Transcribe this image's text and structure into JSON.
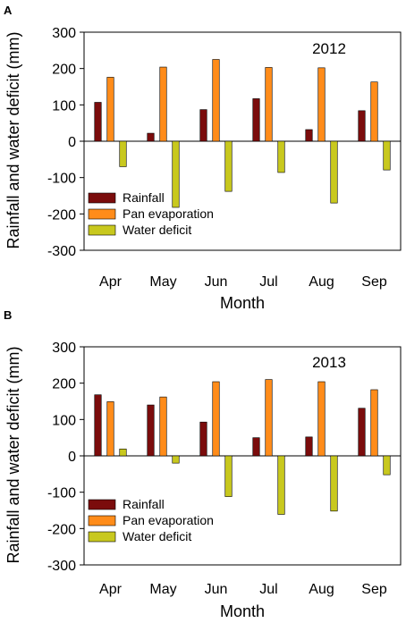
{
  "figure": {
    "panels": [
      {
        "panel_label": "A",
        "annotation": "2012",
        "legend_placement": "bottom-left",
        "legend_labels": [
          "Rainfall",
          "Pan evaporation",
          "Water deficit"
        ],
        "tick_labels_y": [
          "300",
          "200",
          "100",
          "0",
          "-100",
          "-200",
          "-300"
        ],
        "tick_labels_x": [
          "Apr",
          "May",
          "Jun",
          "Jul",
          "Aug",
          "Sep"
        ],
        "xlabel": "Month",
        "ylabel": "Rainfall and water deficit (mm)"
      },
      {
        "panel_label": "B",
        "annotation": "2013",
        "legend_placement": "bottom-left",
        "legend_labels": [
          "Rainfall",
          "Pan evaporation",
          "Water deficit"
        ],
        "tick_labels_y": [
          "300",
          "200",
          "100",
          "0",
          "-100",
          "-200",
          "-300"
        ],
        "tick_labels_x": [
          "Apr",
          "May",
          "Jun",
          "Jul",
          "Aug",
          "Sep"
        ],
        "xlabel": "Month",
        "ylabel": "Rainfall and water deficit (mm)"
      }
    ]
  },
  "chart_data": [
    {
      "type": "bar",
      "panel": "A",
      "annotation": "2012",
      "categories": [
        "Apr",
        "May",
        "Jun",
        "Jul",
        "Aug",
        "Sep"
      ],
      "series": [
        {
          "name": "Rainfall",
          "color": "#7b0c0c",
          "values": [
            107,
            22,
            87,
            117,
            32,
            84
          ]
        },
        {
          "name": "Pan evaporation",
          "color": "#ff8c1a",
          "values": [
            176,
            204,
            225,
            203,
            202,
            163
          ]
        },
        {
          "name": "Water deficit",
          "color": "#c8c81e",
          "values": [
            -70,
            -182,
            -138,
            -86,
            -170,
            -79
          ]
        }
      ],
      "xlabel": "Month",
      "ylabel": "Rainfall and water deficit (mm)",
      "ylim": [
        -300,
        300
      ],
      "yticks": [
        300,
        200,
        100,
        0,
        -100,
        -200,
        -300
      ],
      "grid": false,
      "legend": "bottom-left"
    },
    {
      "type": "bar",
      "panel": "B",
      "annotation": "2013",
      "categories": [
        "Apr",
        "May",
        "Jun",
        "Jul",
        "Aug",
        "Sep"
      ],
      "series": [
        {
          "name": "Rainfall",
          "color": "#7b0c0c",
          "values": [
            168,
            140,
            93,
            50,
            52,
            131
          ]
        },
        {
          "name": "Pan evaporation",
          "color": "#ff8c1a",
          "values": [
            149,
            162,
            204,
            210,
            204,
            182
          ]
        },
        {
          "name": "Water deficit",
          "color": "#c8c81e",
          "values": [
            19,
            -20,
            -112,
            -161,
            -152,
            -52
          ]
        }
      ],
      "xlabel": "Month",
      "ylabel": "Rainfall and water deficit (mm)",
      "ylim": [
        -300,
        300
      ],
      "yticks": [
        300,
        200,
        100,
        0,
        -100,
        -200,
        -300
      ],
      "grid": false,
      "legend": "bottom-left"
    }
  ]
}
